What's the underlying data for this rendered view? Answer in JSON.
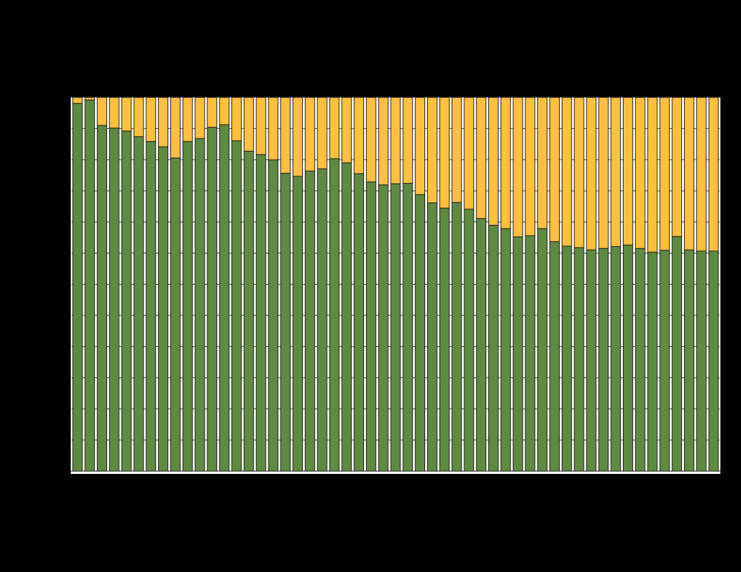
{
  "chart_data": {
    "type": "bar",
    "stacked": true,
    "percent_stacked": true,
    "ylim": [
      0,
      100
    ],
    "grid": true,
    "legend": "none",
    "series": [
      {
        "color": "#5f8a41",
        "values": [
          98.4,
          99.3,
          92.5,
          91.8,
          91.0,
          89.5,
          88.2,
          86.8,
          83.8,
          88.2,
          89.0,
          92.0,
          92.7,
          88.4,
          85.6,
          84.7,
          83.3,
          79.7,
          78.9,
          80.3,
          80.9,
          83.6,
          82.5,
          79.6,
          77.4,
          76.6,
          76.9,
          77.0,
          74.0,
          71.8,
          70.4,
          71.9,
          70.1,
          67.6,
          65.8,
          64.9,
          62.7,
          63.0,
          64.9,
          61.4,
          60.2,
          59.8,
          59.2,
          59.6,
          60.1,
          60.5,
          59.6,
          58.6,
          59.1,
          62.8,
          59.2,
          58.9,
          58.9
        ]
      },
      {
        "color": "#ffbf3f",
        "values": [
          1.6,
          0.7,
          7.5,
          8.2,
          9.0,
          10.5,
          11.8,
          13.2,
          16.2,
          11.8,
          11.0,
          8.0,
          7.3,
          11.6,
          14.4,
          15.3,
          16.7,
          20.3,
          21.1,
          19.7,
          19.1,
          16.4,
          17.5,
          20.4,
          22.6,
          23.4,
          23.1,
          23.0,
          26.0,
          28.2,
          29.6,
          28.1,
          29.9,
          32.4,
          34.2,
          35.1,
          37.3,
          37.0,
          35.1,
          38.6,
          39.8,
          40.2,
          40.8,
          40.4,
          39.9,
          39.5,
          40.4,
          41.4,
          40.9,
          37.2,
          40.8,
          41.1,
          41.1
        ]
      }
    ],
    "colors": {
      "background": "#000000",
      "plot_background": "#ffffff",
      "gridline": "#333333",
      "bar_outline": "#1a1a1a"
    }
  }
}
